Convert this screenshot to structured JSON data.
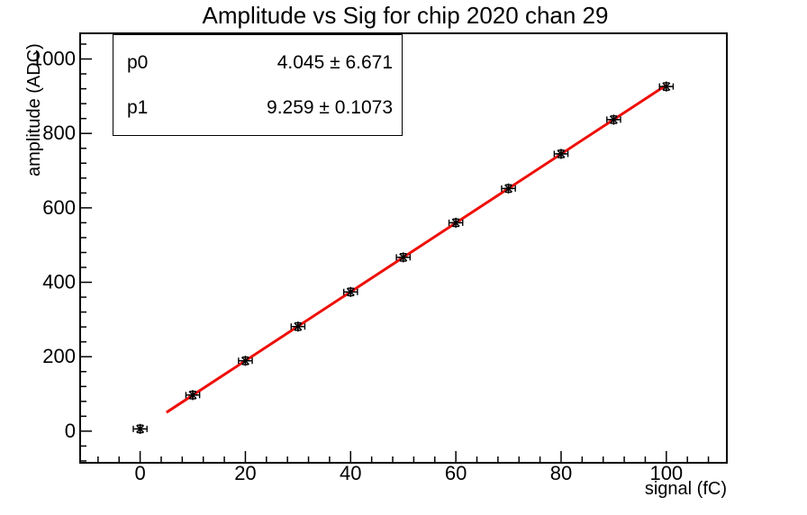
{
  "title": "Amplitude vs Sig for chip 2020 chan 29",
  "stats": {
    "rows": [
      {
        "label": "p0",
        "value": "4.045 ± 6.671"
      },
      {
        "label": "p1",
        "value": "9.259 ± 0.1073"
      }
    ]
  },
  "chart_data": {
    "type": "scatter",
    "title": "Amplitude vs Sig for chip 2020 chan 29",
    "xlabel": "signal (fC)",
    "ylabel": "amplitude (ADC)",
    "x": [
      0,
      10,
      20,
      30,
      40,
      50,
      60,
      70,
      80,
      90,
      100
    ],
    "y": [
      6,
      97,
      189,
      281,
      374,
      467,
      560,
      652,
      745,
      837,
      926
    ],
    "xerr": 1.3,
    "yerr": 10,
    "marker": "asterisk",
    "marker_color": "#000000",
    "fit": {
      "p0": 4.045,
      "p0_err": 6.671,
      "p1": 9.259,
      "p1_err": 0.1073,
      "range": [
        5,
        100
      ],
      "color": "#ee0f08",
      "line_width": 3
    },
    "xlim": [
      -11.4,
      111.5
    ],
    "ylim": [
      -85,
      1069
    ],
    "xticks": [
      0,
      20,
      40,
      60,
      80,
      100
    ],
    "yticks": [
      0,
      200,
      400,
      600,
      800,
      1000
    ],
    "minor_x_step": 4,
    "minor_y_step": 40,
    "grid": false,
    "legend": "none"
  }
}
